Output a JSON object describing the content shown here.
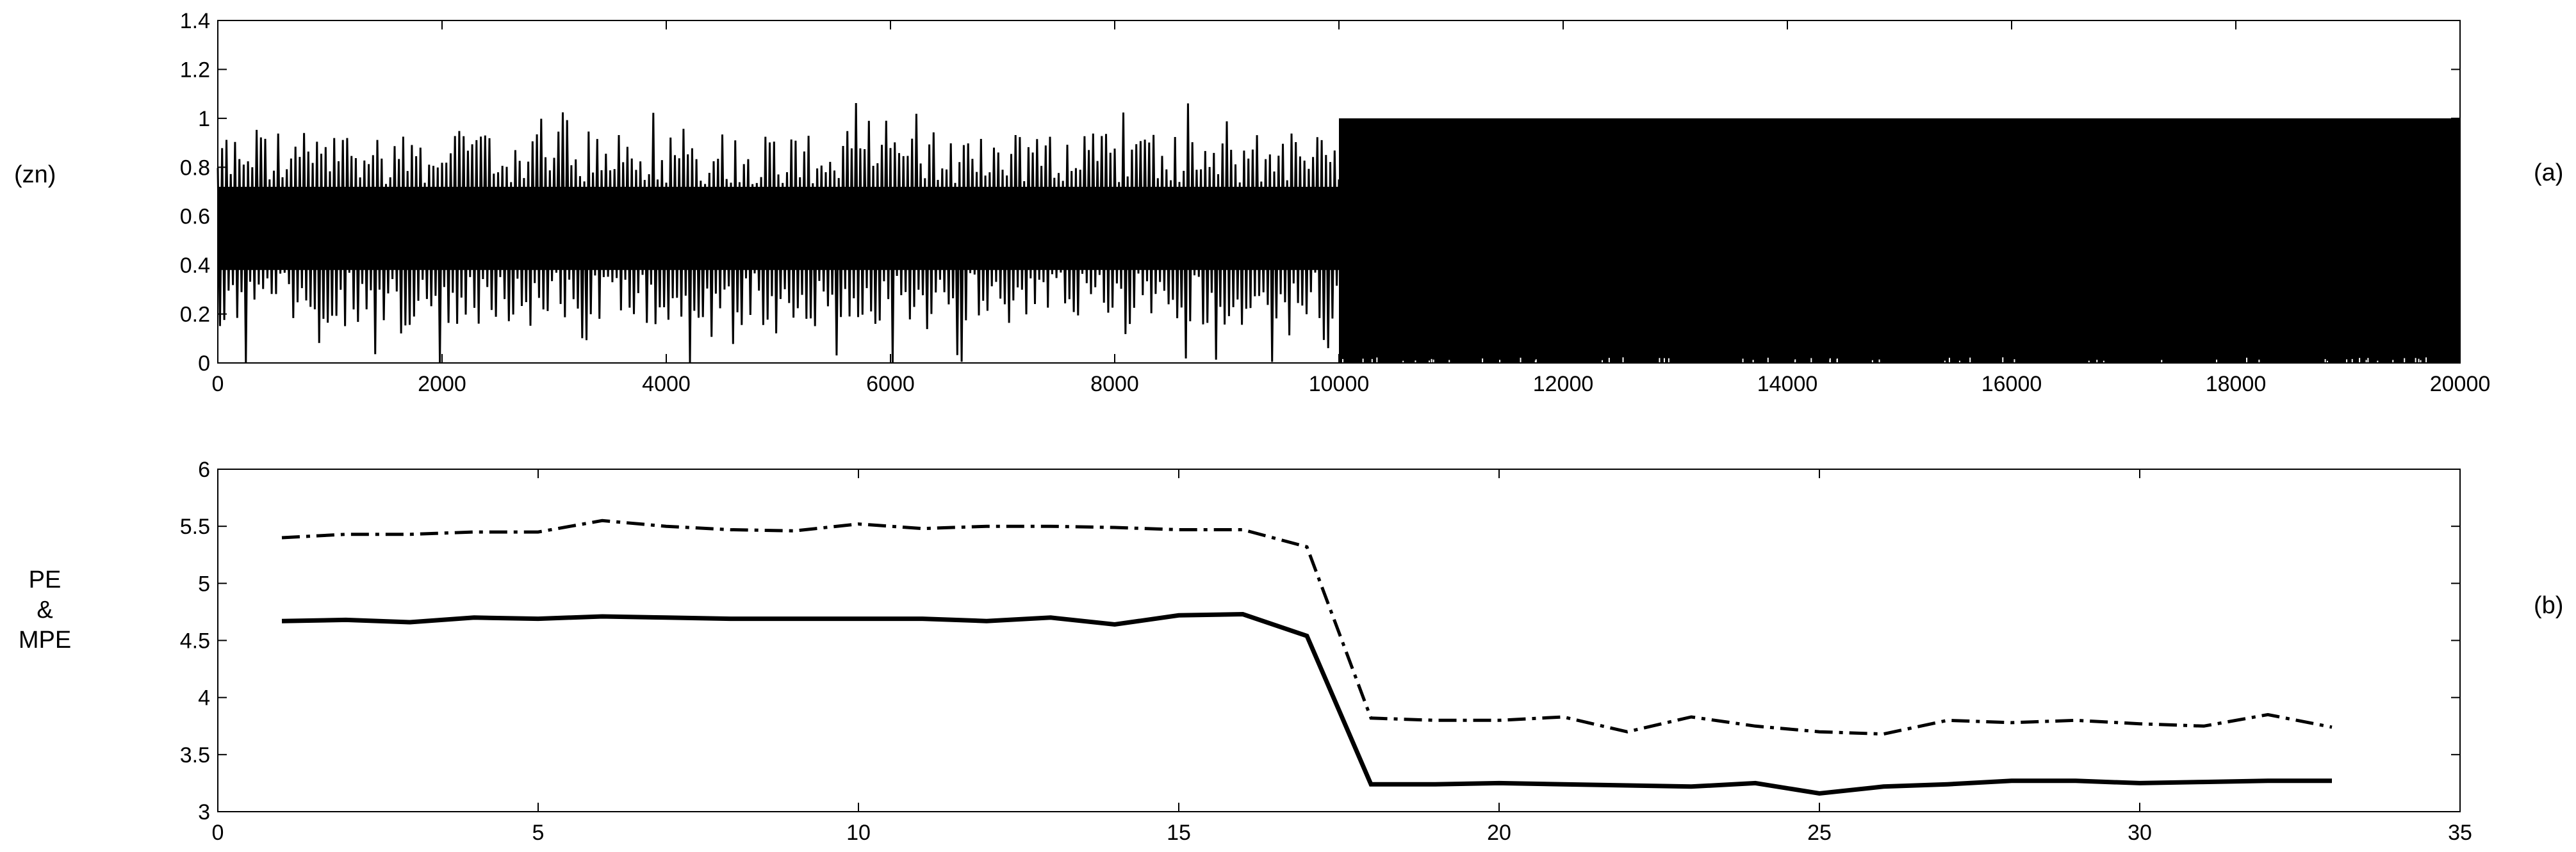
{
  "chart_data": [
    {
      "type": "line",
      "panel_label": "(a)",
      "ylabel": "(zn)",
      "xlim": [
        0,
        20000
      ],
      "ylim": [
        0,
        1.4
      ],
      "xticks": [
        0,
        2000,
        4000,
        6000,
        8000,
        10000,
        12000,
        14000,
        16000,
        18000,
        20000
      ],
      "yticks": [
        0,
        0.2,
        0.4,
        0.6,
        0.8,
        1,
        1.2,
        1.4
      ],
      "xtick_labels": [
        "0",
        "2000",
        "4000",
        "6000",
        "8000",
        "10000",
        "12000",
        "14000",
        "16000",
        "18000",
        "20000"
      ],
      "ytick_labels": [
        "0",
        "0.2",
        "0.4",
        "0.6",
        "0.8",
        "1",
        "1.2",
        "1.4"
      ],
      "grid": false,
      "series": [
        {
          "segment": "noisy",
          "x_range": [
            0,
            10000
          ],
          "approx_mean": 0.55,
          "approx_range": [
            0.0,
            1.08
          ],
          "color": "#000000"
        },
        {
          "segment": "bounded",
          "x_range": [
            10000,
            20000
          ],
          "approx_range": [
            0.0,
            1.0
          ],
          "color": "#000000"
        }
      ]
    },
    {
      "type": "line",
      "panel_label": "(b)",
      "ylabel": [
        "PE",
        "&",
        "MPE"
      ],
      "xlim": [
        0,
        35
      ],
      "ylim": [
        3,
        6
      ],
      "xticks": [
        0,
        5,
        10,
        15,
        20,
        25,
        30,
        35
      ],
      "yticks": [
        3,
        3.5,
        4,
        4.5,
        5,
        5.5,
        6
      ],
      "xtick_labels": [
        "0",
        "5",
        "10",
        "15",
        "20",
        "25",
        "30",
        "35"
      ],
      "ytick_labels": [
        "3",
        "3.5",
        "4",
        "4.5",
        "5",
        "5.5",
        "6"
      ],
      "grid": false,
      "x": [
        1,
        2,
        3,
        4,
        5,
        6,
        7,
        8,
        9,
        10,
        11,
        12,
        13,
        14,
        15,
        16,
        17,
        18,
        19,
        20,
        21,
        22,
        23,
        24,
        25,
        26,
        27,
        28,
        29,
        30,
        31,
        32,
        33
      ],
      "series": [
        {
          "style": "dash-dot",
          "color": "#000000",
          "values": [
            5.4,
            5.43,
            5.43,
            5.45,
            5.45,
            5.55,
            5.5,
            5.47,
            5.46,
            5.52,
            5.48,
            5.5,
            5.5,
            5.49,
            5.47,
            5.47,
            5.32,
            3.82,
            3.8,
            3.8,
            3.83,
            3.7,
            3.83,
            3.75,
            3.7,
            3.68,
            3.8,
            3.78,
            3.8,
            3.77,
            3.75,
            3.85,
            3.74
          ]
        },
        {
          "style": "solid",
          "color": "#000000",
          "values": [
            4.67,
            4.68,
            4.66,
            4.7,
            4.69,
            4.71,
            4.7,
            4.69,
            4.69,
            4.69,
            4.69,
            4.67,
            4.7,
            4.64,
            4.72,
            4.73,
            4.54,
            3.24,
            3.24,
            3.25,
            3.24,
            3.23,
            3.22,
            3.25,
            3.16,
            3.22,
            3.24,
            3.27,
            3.27,
            3.25,
            3.26,
            3.27,
            3.27
          ]
        }
      ]
    }
  ]
}
